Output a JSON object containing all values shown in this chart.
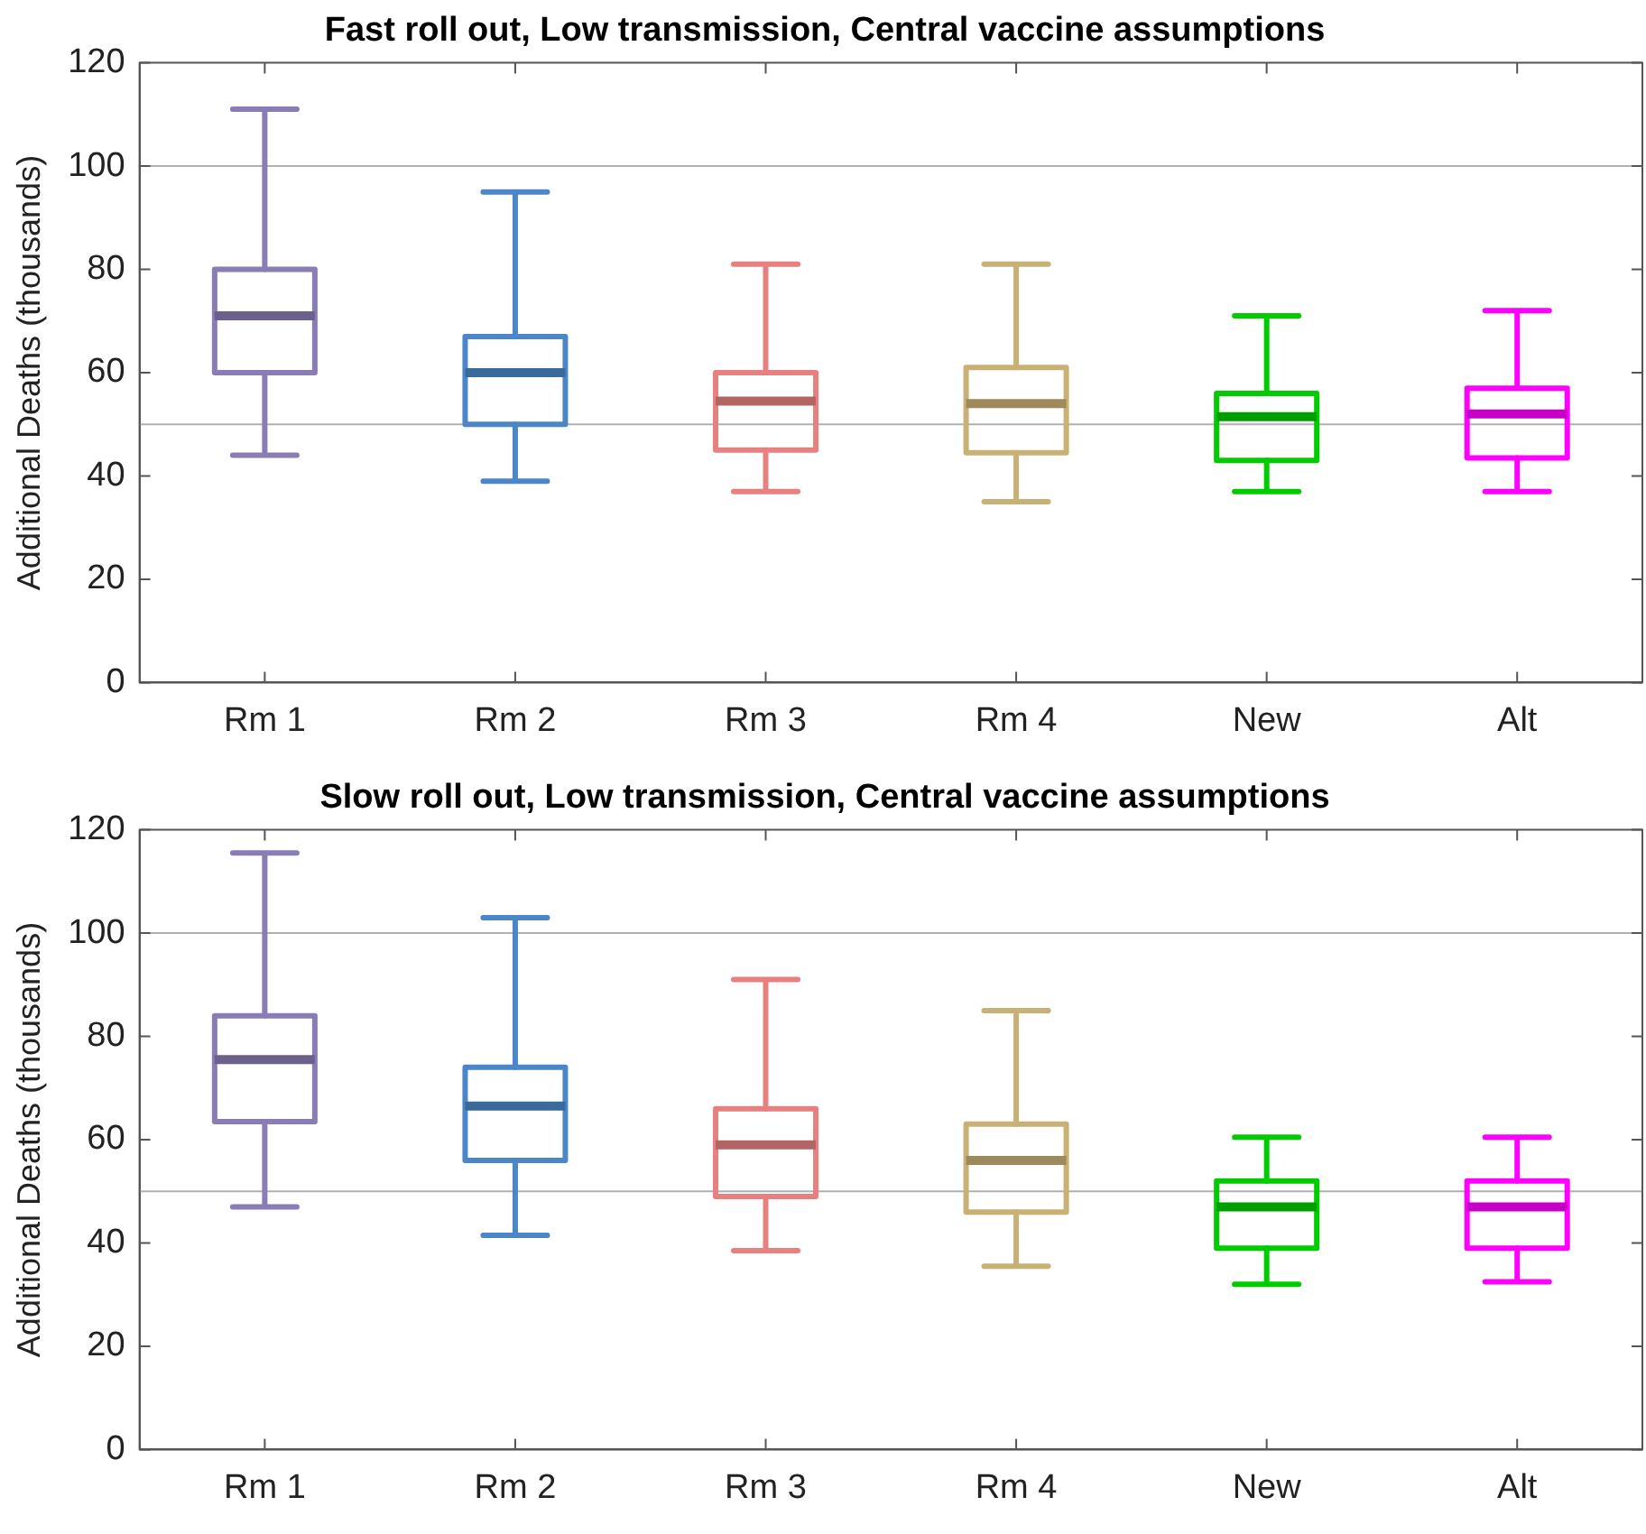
{
  "chart_data": [
    {
      "type": "box",
      "title": "Fast roll out, Low transmission, Central vaccine assumptions",
      "ylabel": "Additional Deaths (thousands)",
      "categories": [
        "Rm 1",
        "Rm 2",
        "Rm 3",
        "Rm 4",
        "New",
        "Alt"
      ],
      "colors": [
        "#8a7cb5",
        "#4a86c8",
        "#e88080",
        "#c9b074",
        "#00cc00",
        "#ff00ff"
      ],
      "boxes": [
        {
          "low": 44,
          "q1": 60,
          "median": 71,
          "q3": 80,
          "high": 111
        },
        {
          "low": 39,
          "q1": 50,
          "median": 60,
          "q3": 67,
          "high": 95
        },
        {
          "low": 37,
          "q1": 45,
          "median": 54.5,
          "q3": 60,
          "high": 81
        },
        {
          "low": 35,
          "q1": 44.5,
          "median": 54,
          "q3": 61,
          "high": 81
        },
        {
          "low": 37,
          "q1": 43,
          "median": 51.5,
          "q3": 56,
          "high": 71
        },
        {
          "low": 37,
          "q1": 43.5,
          "median": 52,
          "q3": 57,
          "high": 72
        }
      ],
      "ylim": [
        0,
        120
      ],
      "yticks": [
        0,
        20,
        40,
        60,
        80,
        100,
        120
      ],
      "ref_lines": [
        {
          "axis": "y",
          "value": 50,
          "color": "#b0b0b0"
        },
        {
          "axis": "y",
          "value": 100,
          "color": "#b0b0b0"
        }
      ]
    },
    {
      "type": "box",
      "title": "Slow roll out, Low transmission, Central vaccine assumptions",
      "ylabel": "Additional Deaths (thousands)",
      "categories": [
        "Rm 1",
        "Rm 2",
        "Rm 3",
        "Rm 4",
        "New",
        "Alt"
      ],
      "colors": [
        "#8a7cb5",
        "#4a86c8",
        "#e88080",
        "#c9b074",
        "#00cc00",
        "#ff00ff"
      ],
      "boxes": [
        {
          "low": 47,
          "q1": 63.5,
          "median": 75.5,
          "q3": 84,
          "high": 115.5
        },
        {
          "low": 41.5,
          "q1": 56,
          "median": 66.5,
          "q3": 74,
          "high": 103
        },
        {
          "low": 38.5,
          "q1": 49,
          "median": 59,
          "q3": 66,
          "high": 91
        },
        {
          "low": 35.5,
          "q1": 46,
          "median": 56,
          "q3": 63,
          "high": 85
        },
        {
          "low": 32,
          "q1": 39,
          "median": 47,
          "q3": 52,
          "high": 60.5
        },
        {
          "low": 32.5,
          "q1": 39,
          "median": 47,
          "q3": 52,
          "high": 60.5
        }
      ],
      "ylim": [
        0,
        120
      ],
      "yticks": [
        0,
        20,
        40,
        60,
        80,
        100,
        120
      ],
      "ref_lines": [
        {
          "axis": "y",
          "value": 50,
          "color": "#b0b0b0"
        },
        {
          "axis": "y",
          "value": 100,
          "color": "#b0b0b0"
        }
      ]
    }
  ]
}
